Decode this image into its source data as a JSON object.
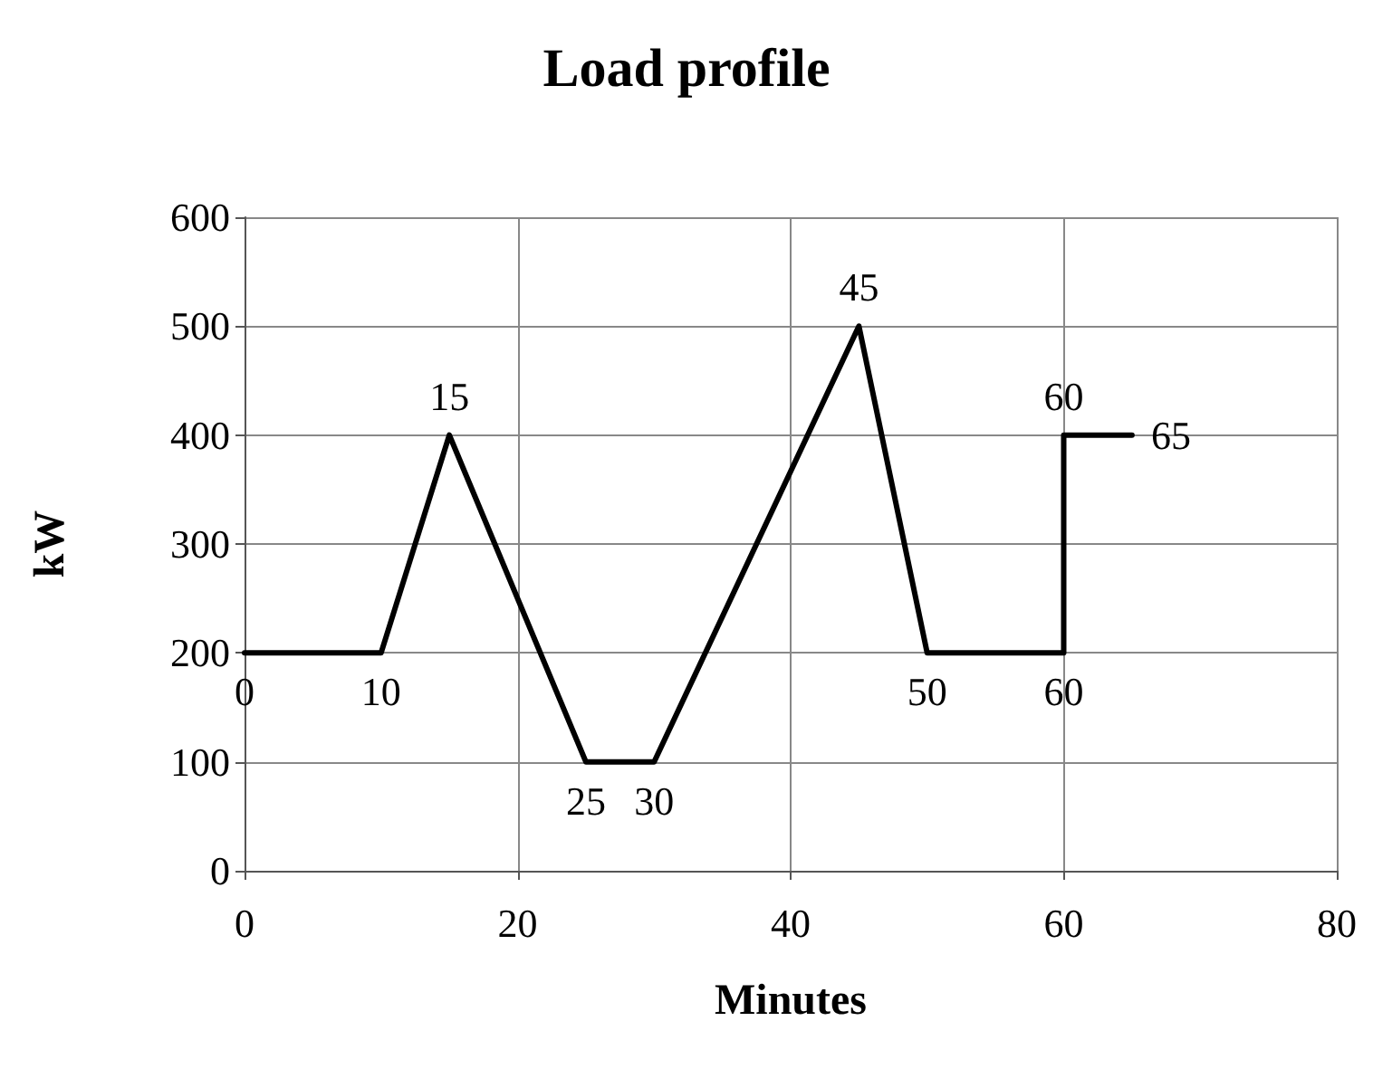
{
  "chart_data": {
    "type": "line",
    "title": "Load profile",
    "xlabel": "Minutes",
    "ylabel": "kW",
    "x": [
      0,
      10,
      15,
      25,
      30,
      45,
      50,
      60,
      60,
      65
    ],
    "series": [
      {
        "color": "#000000",
        "values": [
          200,
          200,
          400,
          100,
          100,
          500,
          200,
          200,
          400,
          400
        ]
      }
    ],
    "annotations": [
      {
        "text": "0",
        "x": 0,
        "y": 200
      },
      {
        "text": "10",
        "x": 10,
        "y": 200
      },
      {
        "text": "15",
        "x": 15,
        "y": 400
      },
      {
        "text": "25",
        "x": 25,
        "y": 100
      },
      {
        "text": "30",
        "x": 30,
        "y": 100
      },
      {
        "text": "45",
        "x": 45,
        "y": 500
      },
      {
        "text": "50",
        "x": 50,
        "y": 200
      },
      {
        "text": "60",
        "x": 60,
        "y": 200
      },
      {
        "text": "60",
        "x": 60,
        "y": 400
      },
      {
        "text": "65",
        "x": 65,
        "y": 400
      }
    ],
    "xlim": [
      0,
      80
    ],
    "xticks": [
      0,
      20,
      40,
      60,
      80
    ],
    "ylim": [
      0,
      600
    ],
    "yticks": [
      0,
      100,
      200,
      300,
      400,
      500,
      600
    ],
    "grid": true,
    "line_style": "solid"
  }
}
